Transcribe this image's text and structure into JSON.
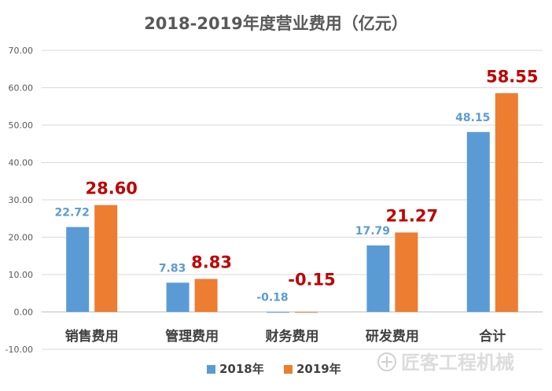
{
  "chart_data": {
    "type": "bar",
    "title": "2018-2019年度营业费用（亿元）",
    "categories": [
      "销售费用",
      "管理费用",
      "财务费用",
      "研发费用",
      "合计"
    ],
    "series": [
      {
        "name": "2018年",
        "values": [
          22.72,
          7.83,
          -0.18,
          17.79,
          48.15
        ],
        "value_labels": [
          "22.72",
          "7.83",
          "-0.18",
          "17.79",
          "48.15"
        ],
        "color": "#5B9BD5",
        "label_color": "#5B9BD5"
      },
      {
        "name": "2019年",
        "values": [
          28.6,
          8.83,
          -0.15,
          21.27,
          58.55
        ],
        "value_labels": [
          "28.60",
          "8.83",
          "-0.15",
          "21.27",
          "58.55"
        ],
        "color": "#ED7D31",
        "label_color": "#C00000"
      }
    ],
    "ylim": [
      -10,
      70
    ],
    "y_ticks": [
      -10,
      0,
      10,
      20,
      30,
      40,
      50,
      60,
      70
    ],
    "y_tick_labels": [
      "-10.00",
      "0.00",
      "10.00",
      "20.00",
      "30.00",
      "40.00",
      "50.00",
      "60.00",
      "70.00"
    ],
    "xlabel": "",
    "ylabel": "",
    "grid": true,
    "legend_position": "bottom"
  },
  "watermark": {
    "text": "匠客工程机械"
  },
  "colors": {
    "grid": "#D9D9D9",
    "axis_text": "#595959",
    "title": "#595959",
    "category_text": "#404040"
  }
}
